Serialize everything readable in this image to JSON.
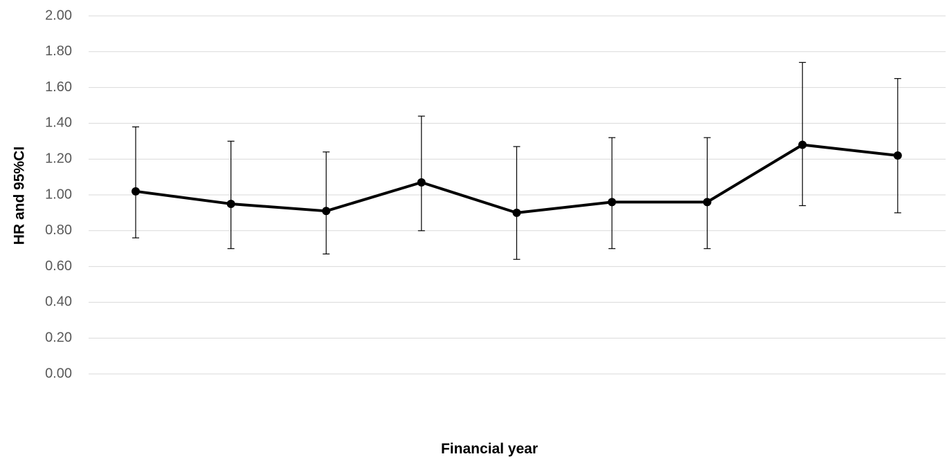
{
  "chart_data": {
    "type": "line",
    "title": "",
    "xlabel": "Financial year",
    "ylabel": "HR and 95%CI",
    "ylim": [
      0,
      2
    ],
    "yticks": [
      "0.00",
      "0.20",
      "0.40",
      "0.60",
      "0.80",
      "1.00",
      "1.20",
      "1.40",
      "1.60",
      "1.80",
      "2.00"
    ],
    "grid": true,
    "legend": "none",
    "x": [
      1,
      2,
      3,
      4,
      5,
      6,
      7,
      8,
      9
    ],
    "series": [
      {
        "values": [
          1.02,
          0.95,
          0.91,
          1.07,
          0.9,
          0.96,
          0.96,
          1.28,
          1.22
        ],
        "lower": [
          0.76,
          0.7,
          0.67,
          0.8,
          0.64,
          0.7,
          0.7,
          0.94,
          0.9
        ],
        "upper": [
          1.38,
          1.3,
          1.24,
          1.44,
          1.27,
          1.32,
          1.32,
          1.74,
          1.65
        ],
        "color": "#000000"
      }
    ]
  }
}
